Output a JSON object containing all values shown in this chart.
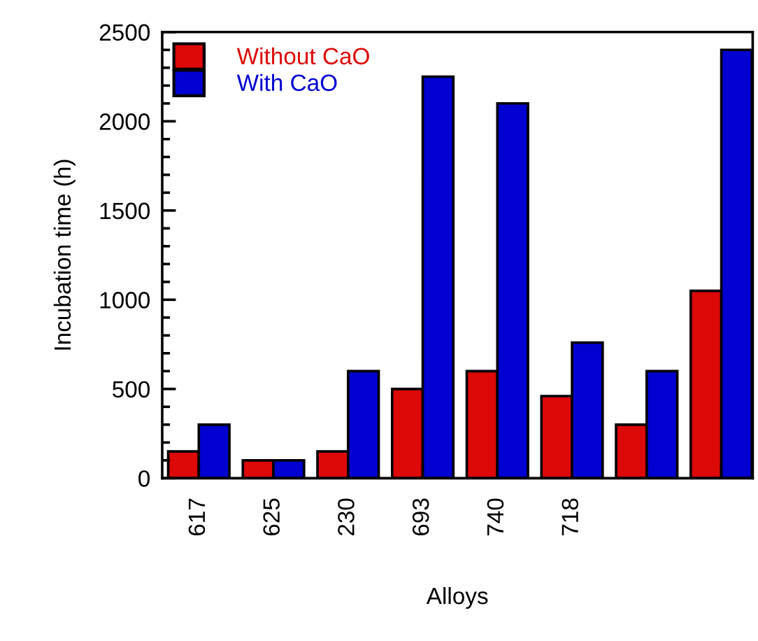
{
  "chart_data": {
    "type": "bar",
    "xlabel": "Alloys",
    "ylabel": "Incubation time (h)",
    "categories": [
      "617",
      "625",
      "230",
      "693",
      "740",
      "718",
      null,
      null
    ],
    "series": [
      {
        "name": "Without CaO",
        "color": "#dd0808",
        "values": [
          150,
          100,
          150,
          500,
          600,
          460,
          300,
          1050
        ]
      },
      {
        "name": "With CaO",
        "color": "#0000d0",
        "values": [
          300,
          100,
          600,
          2250,
          2100,
          760,
          600,
          2400
        ]
      }
    ],
    "ylim": [
      0,
      2500
    ],
    "yticks": [
      0,
      500,
      1000,
      1500,
      2000,
      2500
    ],
    "legend": "top left",
    "grid": false
  }
}
